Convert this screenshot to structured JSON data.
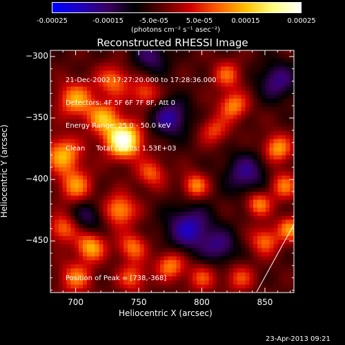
{
  "colorbar": {
    "ticks": [
      "-0.00025",
      "-0.00015",
      "-5.0e-05",
      "5.0e-05",
      "0.00015",
      "0.00025"
    ],
    "units_label": "(photons cm⁻² s⁻¹ asec⁻²)",
    "colors": [
      "#0000ff",
      "#2000c0",
      "#3a0060",
      "#000000",
      "#600000",
      "#d00000",
      "#ff6000",
      "#ffc000",
      "#ffff80",
      "#ffffff"
    ]
  },
  "chart_data": {
    "type": "heatmap",
    "title": "Reconstructed RHESSI Image",
    "xlabel": "Heliocentric X (arcsec)",
    "ylabel": "Heliocentric Y (arcsec)",
    "xlim": [
      680,
      873
    ],
    "ylim": [
      -492,
      -295
    ],
    "x_ticks": [
      700,
      750,
      800,
      850
    ],
    "y_ticks": [
      -300,
      -350,
      -400,
      -450
    ],
    "peak": {
      "x": 738,
      "y": -368
    },
    "blobs": [
      {
        "x": 738,
        "y": -368,
        "amp": 1.0,
        "s": 10
      },
      {
        "x": 722,
        "y": -350,
        "amp": 0.55,
        "s": 9
      },
      {
        "x": 700,
        "y": -335,
        "amp": 0.55,
        "s": 10
      },
      {
        "x": 690,
        "y": -380,
        "amp": 0.6,
        "s": 10
      },
      {
        "x": 700,
        "y": -405,
        "amp": 0.5,
        "s": 9
      },
      {
        "x": 730,
        "y": -320,
        "amp": 0.45,
        "s": 9
      },
      {
        "x": 755,
        "y": -330,
        "amp": 0.4,
        "s": 8
      },
      {
        "x": 760,
        "y": -395,
        "amp": 0.4,
        "s": 8
      },
      {
        "x": 735,
        "y": -425,
        "amp": 0.55,
        "s": 9
      },
      {
        "x": 712,
        "y": -455,
        "amp": 0.6,
        "s": 8
      },
      {
        "x": 745,
        "y": -455,
        "amp": 0.45,
        "s": 8
      },
      {
        "x": 700,
        "y": -480,
        "amp": 0.45,
        "s": 9
      },
      {
        "x": 745,
        "y": -480,
        "amp": 0.4,
        "s": 8
      },
      {
        "x": 775,
        "y": -470,
        "amp": 0.5,
        "s": 8
      },
      {
        "x": 800,
        "y": -480,
        "amp": 0.35,
        "s": 8
      },
      {
        "x": 795,
        "y": -405,
        "amp": 0.5,
        "s": 7
      },
      {
        "x": 810,
        "y": -360,
        "amp": 0.35,
        "s": 8
      },
      {
        "x": 825,
        "y": -340,
        "amp": 0.5,
        "s": 8
      },
      {
        "x": 820,
        "y": -315,
        "amp": 0.4,
        "s": 8
      },
      {
        "x": 860,
        "y": -375,
        "amp": 0.55,
        "s": 8
      },
      {
        "x": 865,
        "y": -405,
        "amp": 0.45,
        "s": 8
      },
      {
        "x": 845,
        "y": -420,
        "amp": 0.5,
        "s": 7
      },
      {
        "x": 850,
        "y": -450,
        "amp": 0.45,
        "s": 8
      },
      {
        "x": 870,
        "y": -440,
        "amp": 0.5,
        "s": 7
      },
      {
        "x": 830,
        "y": -480,
        "amp": 0.35,
        "s": 8
      },
      {
        "x": 690,
        "y": -440,
        "amp": 0.45,
        "s": 8
      },
      {
        "x": 775,
        "y": -350,
        "amp": -0.45,
        "s": 11
      },
      {
        "x": 790,
        "y": -440,
        "amp": -0.5,
        "s": 13
      },
      {
        "x": 835,
        "y": -395,
        "amp": -0.4,
        "s": 12
      },
      {
        "x": 760,
        "y": -300,
        "amp": -0.35,
        "s": 10
      },
      {
        "x": 710,
        "y": -430,
        "amp": -0.3,
        "s": 9
      },
      {
        "x": 860,
        "y": -320,
        "amp": -0.4,
        "s": 11
      },
      {
        "x": 815,
        "y": -455,
        "amp": -0.35,
        "s": 10
      }
    ]
  },
  "overlay": {
    "line1": "21-Dec-2002 17:27:20.000 to 17:28:36.000",
    "line2": "Detectors: 4F 5F 6F 7F 8F, Att 0",
    "line3": "Energy Range: 25.0 - 50.0 keV",
    "line4": "Clean     Total counts: 1.53E+03",
    "peak_text": "Position of Peak = [738,-368]"
  },
  "footer": {
    "timestamp": "23-Apr-2013 09:21"
  }
}
